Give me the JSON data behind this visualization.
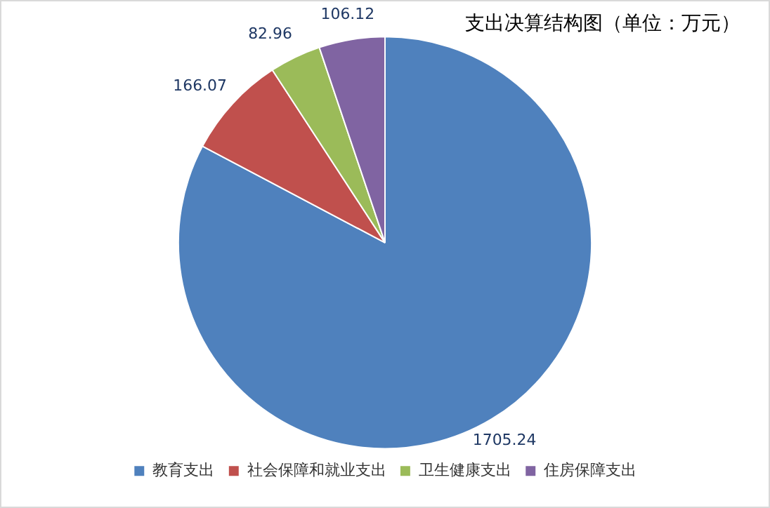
{
  "chart_data": {
    "type": "pie",
    "title": "支出决算结构图（单位：万元）",
    "categories": [
      "教育支出",
      "社会保障和就业支出",
      "卫生健康支出",
      "住房保障支出"
    ],
    "values": [
      1705.24,
      166.07,
      82.96,
      106.12
    ],
    "colors": [
      "#4f81bd",
      "#c0504d",
      "#9bbb59",
      "#8064a2"
    ],
    "data_labels": true,
    "legend": "bottom"
  }
}
